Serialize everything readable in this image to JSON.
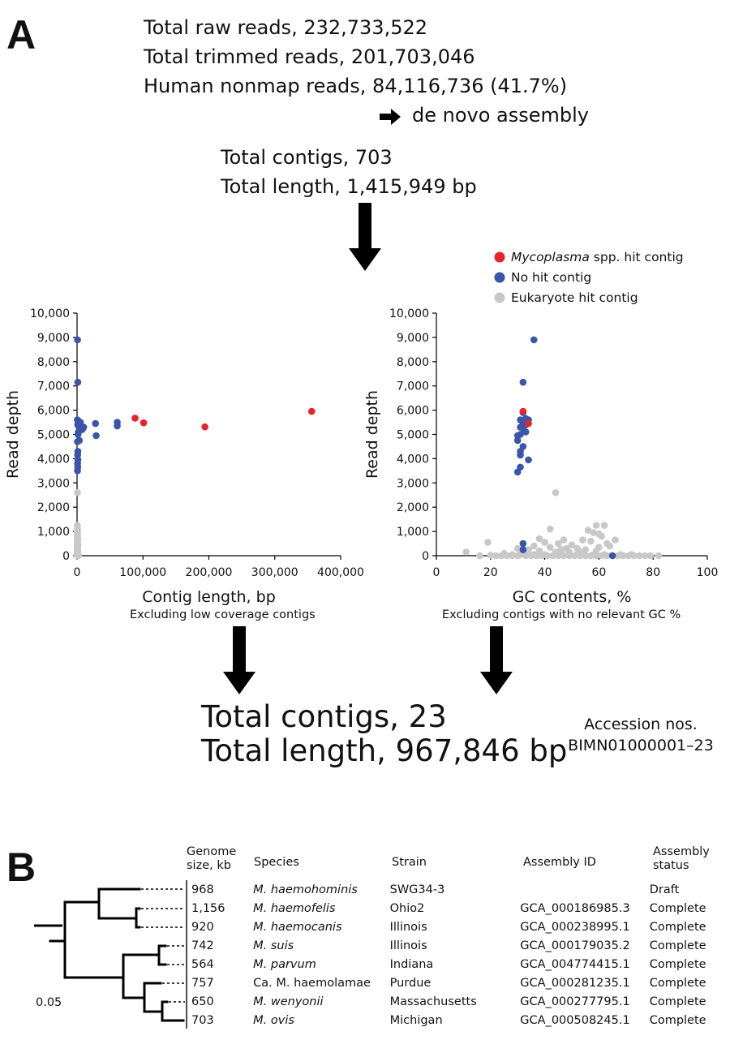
{
  "panel_a": {
    "letter": "A",
    "stats_top": [
      "Total raw reads, 232,733,522",
      "Total trimmed reads, 201,703,046",
      "Human nonmap reads, 84,116,736 (41.7%)"
    ],
    "assembly_step": "de novo assembly",
    "assembly_arrow_icon": "right-arrow-icon",
    "contigs_before": [
      "Total contigs, 703",
      "Total length, 1,415,949 bp"
    ],
    "caption_left": "Excluding low coverage contigs",
    "caption_right": "Excluding contigs with no relevant GC %",
    "contigs_after": [
      "Total contigs, 23",
      "Total length, 967,846 bp"
    ],
    "accession_label": "Accession nos.",
    "accession_value": "BIMN01000001–23"
  },
  "legend": {
    "items": [
      {
        "italic": "Mycoplasma",
        "text": " spp. hit contig",
        "color": "#e8232a"
      },
      {
        "italic": "",
        "text": "No hit contig",
        "color": "#3b55a8"
      },
      {
        "italic": "",
        "text": "Eukaryote hit contig",
        "color": "#c8c8c8"
      }
    ]
  },
  "chart_data": [
    {
      "type": "scatter",
      "xlabel": "Contig length, bp",
      "ylabel": "Read depth",
      "xlim": [
        0,
        400000
      ],
      "ylim": [
        0,
        10000
      ],
      "xticks": [
        0,
        100000,
        200000,
        300000,
        400000
      ],
      "xtick_labels": [
        "0",
        "100,000",
        "200,000",
        "300,000",
        "400,000"
      ],
      "yticks": [
        0,
        1000,
        2000,
        3000,
        4000,
        5000,
        6000,
        7000,
        8000,
        9000,
        10000
      ],
      "ytick_labels": [
        "0",
        "1,000",
        "2,000",
        "3,000",
        "4,000",
        "5,000",
        "6,000",
        "7,000",
        "8,000",
        "9,000",
        "10,000"
      ],
      "series": [
        {
          "color": "#c8c8c8",
          "points": [
            [
              600,
              2600
            ],
            [
              500,
              1250
            ],
            [
              700,
              1100
            ],
            [
              400,
              1000
            ],
            [
              800,
              900
            ],
            [
              500,
              800
            ],
            [
              1200,
              700
            ],
            [
              300,
              650
            ],
            [
              900,
              600
            ],
            [
              600,
              550
            ],
            [
              400,
              500
            ],
            [
              1500,
              450
            ],
            [
              700,
              400
            ],
            [
              300,
              380
            ],
            [
              1000,
              350
            ],
            [
              500,
              300
            ],
            [
              800,
              280
            ],
            [
              400,
              250
            ],
            [
              1200,
              220
            ],
            [
              600,
              200
            ],
            [
              300,
              180
            ],
            [
              900,
              160
            ],
            [
              500,
              140
            ],
            [
              700,
              120
            ],
            [
              400,
              100
            ],
            [
              1100,
              90
            ],
            [
              300,
              80
            ],
            [
              600,
              70
            ],
            [
              800,
              60
            ],
            [
              500,
              50
            ],
            [
              400,
              40
            ],
            [
              1300,
              30
            ],
            [
              700,
              25
            ],
            [
              300,
              20
            ],
            [
              900,
              15
            ],
            [
              500,
              10
            ],
            [
              600,
              5
            ],
            [
              400,
              0
            ],
            [
              1000,
              0
            ],
            [
              2000,
              0
            ],
            [
              1500,
              0
            ],
            [
              800,
              0
            ]
          ]
        },
        {
          "color": "#3b55a8",
          "points": [
            [
              700,
              8900
            ],
            [
              1100,
              7150
            ],
            [
              500,
              5600
            ],
            [
              2000,
              5550
            ],
            [
              5000,
              5500
            ],
            [
              1000,
              5400
            ],
            [
              3000,
              5300
            ],
            [
              10000,
              5300
            ],
            [
              8000,
              5200
            ],
            [
              2000,
              5100
            ],
            [
              1500,
              5000
            ],
            [
              3500,
              4750
            ],
            [
              600,
              4700
            ],
            [
              1200,
              4300
            ],
            [
              900,
              4150
            ],
            [
              1300,
              3950
            ],
            [
              800,
              3800
            ],
            [
              1000,
              3650
            ],
            [
              700,
              3500
            ],
            [
              28000,
              5450
            ],
            [
              29000,
              4950
            ],
            [
              61000,
              5500
            ],
            [
              61000,
              5350
            ]
          ]
        },
        {
          "color": "#e8232a",
          "points": [
            [
              88000,
              5670
            ],
            [
              101000,
              5480
            ],
            [
              194000,
              5310
            ],
            [
              356000,
              5950
            ]
          ]
        }
      ]
    },
    {
      "type": "scatter",
      "xlabel": "GC contents, %",
      "ylabel": "Read depth",
      "xlim": [
        0,
        100
      ],
      "ylim": [
        0,
        10000
      ],
      "xticks": [
        0,
        20,
        40,
        60,
        80,
        100
      ],
      "xtick_labels": [
        "0",
        "20",
        "40",
        "60",
        "80",
        "100"
      ],
      "yticks": [
        0,
        1000,
        2000,
        3000,
        4000,
        5000,
        6000,
        7000,
        8000,
        9000,
        10000
      ],
      "ytick_labels": [
        "0",
        "1,000",
        "2,000",
        "3,000",
        "4,000",
        "5,000",
        "6,000",
        "7,000",
        "8,000",
        "9,000",
        "10,000"
      ],
      "series": [
        {
          "color": "#c8c8c8",
          "points": [
            [
              44,
              2600
            ],
            [
              42,
              1100
            ],
            [
              59,
              1250
            ],
            [
              62,
              1250
            ],
            [
              56,
              1050
            ],
            [
              58,
              950
            ],
            [
              60,
              900
            ],
            [
              61,
              800
            ],
            [
              38,
              700
            ],
            [
              47,
              650
            ],
            [
              54,
              650
            ],
            [
              66,
              650
            ],
            [
              19,
              550
            ],
            [
              32,
              500
            ],
            [
              40,
              550
            ],
            [
              45,
              500
            ],
            [
              50,
              450
            ],
            [
              57,
              600
            ],
            [
              63,
              500
            ],
            [
              36,
              400
            ],
            [
              42,
              350
            ],
            [
              48,
              300
            ],
            [
              52,
              300
            ],
            [
              60,
              350
            ],
            [
              64,
              400
            ],
            [
              30,
              300
            ],
            [
              34,
              250
            ],
            [
              46,
              250
            ],
            [
              55,
              250
            ],
            [
              59,
              200
            ],
            [
              38,
              200
            ],
            [
              44,
              150
            ],
            [
              49,
              150
            ],
            [
              53,
              150
            ],
            [
              11,
              150
            ],
            [
              25,
              100
            ],
            [
              28,
              50
            ],
            [
              20,
              20
            ],
            [
              24,
              0
            ],
            [
              26,
              0
            ],
            [
              28,
              0
            ],
            [
              30,
              0
            ],
            [
              33,
              0
            ],
            [
              35,
              0
            ],
            [
              37,
              0
            ],
            [
              39,
              0
            ],
            [
              41,
              0
            ],
            [
              43,
              0
            ],
            [
              45,
              0
            ],
            [
              47,
              0
            ],
            [
              49,
              0
            ],
            [
              51,
              0
            ],
            [
              53,
              0
            ],
            [
              55,
              0
            ],
            [
              57,
              0
            ],
            [
              59,
              0
            ],
            [
              61,
              0
            ],
            [
              63,
              0
            ],
            [
              65,
              0
            ],
            [
              67,
              0
            ],
            [
              69,
              0
            ],
            [
              71,
              0
            ],
            [
              73,
              0
            ],
            [
              75,
              0
            ],
            [
              77,
              0
            ],
            [
              79,
              0
            ],
            [
              82,
              0
            ],
            [
              16,
              0
            ],
            [
              22,
              0
            ],
            [
              31,
              50
            ],
            [
              36,
              50
            ],
            [
              40,
              50
            ],
            [
              46,
              50
            ],
            [
              52,
              50
            ],
            [
              58,
              50
            ],
            [
              62,
              50
            ],
            [
              68,
              50
            ],
            [
              72,
              50
            ]
          ]
        },
        {
          "color": "#3b55a8",
          "points": [
            [
              36,
              8900
            ],
            [
              32,
              7150
            ],
            [
              32,
              5900
            ],
            [
              31,
              5600
            ],
            [
              33,
              5650
            ],
            [
              34,
              5600
            ],
            [
              32,
              5500
            ],
            [
              33,
              5400
            ],
            [
              31,
              5300
            ],
            [
              32,
              5250
            ],
            [
              33,
              5100
            ],
            [
              31,
              5000
            ],
            [
              30,
              4950
            ],
            [
              30,
              4750
            ],
            [
              32,
              4500
            ],
            [
              31,
              4300
            ],
            [
              31,
              4150
            ],
            [
              34,
              3950
            ],
            [
              31,
              3650
            ],
            [
              30,
              3450
            ],
            [
              32,
              500
            ],
            [
              32,
              250
            ],
            [
              65,
              0
            ]
          ]
        },
        {
          "color": "#e8232a",
          "points": [
            [
              32,
              5950
            ],
            [
              34,
              5450
            ]
          ]
        }
      ]
    }
  ],
  "panel_b": {
    "letter": "B",
    "headers": {
      "genome": [
        "Genome",
        "size, kb"
      ],
      "species": "Species",
      "strain": "Strain",
      "assembly_id": "Assembly ID",
      "status": [
        "Assembly",
        "status"
      ]
    },
    "rows": [
      {
        "size": "968",
        "species_prefix": "",
        "species": "M. haemohominis",
        "strain": "SWG34-3",
        "assembly_id": "",
        "status": "Draft"
      },
      {
        "size": "1,156",
        "species_prefix": "",
        "species": "M. haemofelis",
        "strain": "Ohio2",
        "assembly_id": "GCA_000186985.3",
        "status": "Complete"
      },
      {
        "size": "920",
        "species_prefix": "",
        "species": "M. haemocanis",
        "strain": "Illinois",
        "assembly_id": "GCA_000238995.1",
        "status": "Complete"
      },
      {
        "size": "742",
        "species_prefix": "",
        "species": "M. suis",
        "strain": "Illinois",
        "assembly_id": "GCA_000179035.2",
        "status": "Complete"
      },
      {
        "size": "564",
        "species_prefix": "",
        "species": "M. parvum",
        "strain": "Indiana",
        "assembly_id": "GCA_004774415.1",
        "status": "Complete"
      },
      {
        "size": "757",
        "species_prefix": "Ca. M. haemolamae",
        "species": "",
        "strain": "Purdue",
        "assembly_id": "GCA_000281235.1",
        "status": "Complete"
      },
      {
        "size": "650",
        "species_prefix": "",
        "species": "M. wenyonii",
        "strain": "Massachusetts",
        "assembly_id": "GCA_000277795.1",
        "status": "Complete"
      },
      {
        "size": "703",
        "species_prefix": "",
        "species": "M. ovis",
        "strain": "Michigan",
        "assembly_id": "GCA_000508245.1",
        "status": "Complete"
      }
    ],
    "scale_label": "0.05"
  }
}
